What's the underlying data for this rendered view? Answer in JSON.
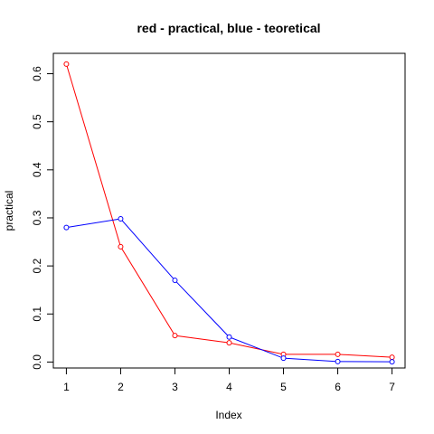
{
  "chart_data": {
    "type": "line",
    "title": "red - practical, blue - teoretical",
    "xlabel": "Index",
    "ylabel": "practical",
    "x": [
      1,
      2,
      3,
      4,
      5,
      6,
      7
    ],
    "xticks": [
      "1",
      "2",
      "3",
      "4",
      "5",
      "6",
      "7"
    ],
    "yticks": [
      "0.0",
      "0.1",
      "0.2",
      "0.3",
      "0.4",
      "0.5",
      "0.6"
    ],
    "xlim": [
      0.76,
      7.24
    ],
    "ylim": [
      -0.0124,
      0.6424
    ],
    "grid": false,
    "series": [
      {
        "color": "#ff0000",
        "values": [
          0.62,
          0.24,
          0.055,
          0.04,
          0.016,
          0.016,
          0.01
        ]
      },
      {
        "color": "#0000ff",
        "values": [
          0.28,
          0.298,
          0.17,
          0.052,
          0.008,
          0.001,
          0.0005
        ]
      }
    ]
  }
}
